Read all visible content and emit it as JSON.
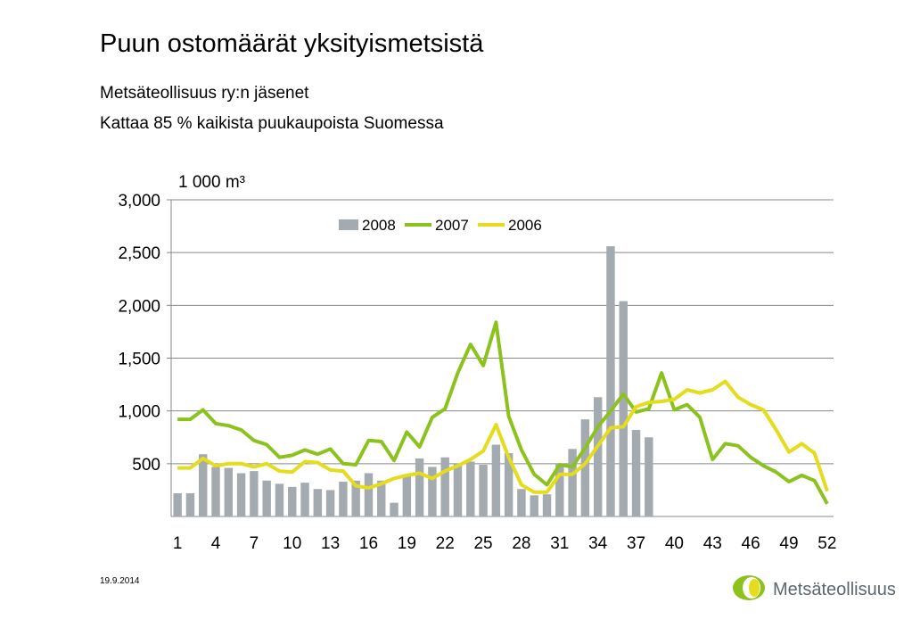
{
  "title": "Puun ostomäärät yksityismetsistä",
  "subtitle": [
    "Metsäteollisuus ry:n jäsenet",
    "Kattaa 85 % kaikista puukaupoista Suomessa"
  ],
  "footer": {
    "date": "19.9.2014",
    "logo": "Metsäteollisuus"
  },
  "chart_data": {
    "type": "bar-line",
    "unit_label": "1 000 m³",
    "categories": [
      1,
      null,
      null,
      4,
      null,
      null,
      7,
      null,
      null,
      10,
      null,
      null,
      13,
      null,
      null,
      16,
      null,
      null,
      19,
      null,
      null,
      22,
      null,
      null,
      25,
      null,
      null,
      28,
      null,
      null,
      31,
      null,
      null,
      34,
      null,
      null,
      37,
      null,
      null,
      40,
      null,
      null,
      43,
      null,
      null,
      46,
      null,
      null,
      49,
      null,
      null,
      52
    ],
    "ylim": [
      0,
      3000
    ],
    "yticks": [
      500,
      {
        "value": 1000,
        "label": "1,000"
      },
      {
        "value": 1500,
        "label": "1,500"
      },
      {
        "value": 2000,
        "label": "2,000"
      },
      {
        "value": 2500,
        "label": "2,500"
      },
      {
        "value": 3000,
        "label": "3,000"
      }
    ],
    "grid": true,
    "legend": "top",
    "series": [
      {
        "name": "2008",
        "type": "bar",
        "color": "#a3abb1",
        "values": [
          220,
          220,
          590,
          470,
          460,
          410,
          430,
          340,
          310,
          280,
          320,
          260,
          250,
          330,
          340,
          410,
          340,
          130,
          390,
          550,
          470,
          560,
          500,
          520,
          490,
          680,
          600,
          260,
          200,
          210,
          500,
          640,
          920,
          1130,
          2560,
          2040,
          820,
          750,
          null,
          null,
          null,
          null,
          null,
          null,
          null,
          null,
          null,
          null,
          null,
          null,
          null,
          null
        ]
      },
      {
        "name": "2007",
        "type": "line",
        "color": "#8cc21e",
        "values": [
          920,
          920,
          1010,
          880,
          860,
          820,
          720,
          680,
          560,
          580,
          630,
          590,
          640,
          500,
          490,
          720,
          710,
          530,
          800,
          660,
          940,
          1020,
          1360,
          1630,
          1430,
          1840,
          950,
          630,
          400,
          300,
          490,
          470,
          650,
          850,
          1000,
          1160,
          990,
          1020,
          1360,
          1010,
          1060,
          940,
          540,
          690,
          670,
          560,
          480,
          420,
          330,
          390,
          340,
          120
        ]
      },
      {
        "name": "2006",
        "type": "line",
        "color": "#e4dc1c",
        "values": [
          460,
          460,
          550,
          480,
          500,
          500,
          470,
          500,
          430,
          420,
          520,
          510,
          440,
          430,
          290,
          270,
          310,
          360,
          390,
          410,
          360,
          430,
          480,
          540,
          620,
          870,
          560,
          300,
          230,
          230,
          400,
          400,
          500,
          670,
          840,
          850,
          1040,
          1080,
          1090,
          1110,
          1200,
          1170,
          1200,
          1280,
          1130,
          1060,
          1010,
          820,
          610,
          690,
          600,
          240
        ]
      }
    ]
  }
}
